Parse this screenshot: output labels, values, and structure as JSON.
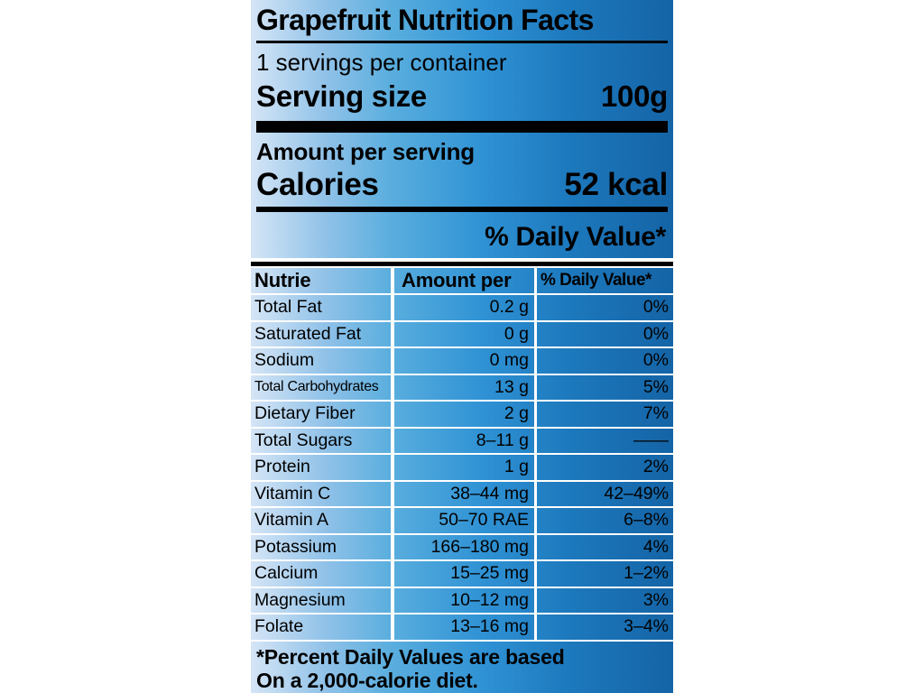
{
  "label": {
    "title": "Grapefruit Nutrition Facts",
    "servings_per_container": "1 servings per container",
    "serving_size_label": "Serving size",
    "serving_size_value": "100g",
    "amount_per_serving": "Amount per serving",
    "calories_label": "Calories",
    "calories_value": "52 kcal",
    "daily_value_heading": "% Daily Value*",
    "table": {
      "columns": [
        "Nutrie",
        "Amount per",
        "% Daily Value*"
      ],
      "rows": [
        [
          "Total Fat",
          "0.2 g",
          "0%"
        ],
        [
          "Saturated Fat",
          "0 g",
          "0%"
        ],
        [
          "Sodium",
          "0 mg",
          "0%"
        ],
        [
          "Total Carbohydrates",
          "13 g",
          "5%"
        ],
        [
          "Dietary Fiber",
          "2 g",
          "7%"
        ],
        [
          "Total Sugars",
          "8–11 g",
          "——"
        ],
        [
          "Protein",
          "1 g",
          "2%"
        ],
        [
          "Vitamin C",
          "38–44 mg",
          "42–49%"
        ],
        [
          "Vitamin A",
          "50–70 RAE",
          "6–8%"
        ],
        [
          "Potassium",
          "166–180 mg",
          "4%"
        ],
        [
          "Calcium",
          "15–25 mg",
          "1–2%"
        ],
        [
          "Magnesium",
          "10–12 mg",
          "3%"
        ],
        [
          "Folate",
          "13–16 mg",
          "3–4%"
        ]
      ]
    },
    "footnote_line1": "*Percent Daily Values are based",
    "footnote_line2": "On a 2,000-calorie diet.",
    "colors": {
      "gradient_light": "#d5e5f6",
      "gradient_mid": "#2f92d4",
      "gradient_dark": "#1464a6",
      "rule_color": "#000000",
      "text_color": "#000000"
    }
  }
}
